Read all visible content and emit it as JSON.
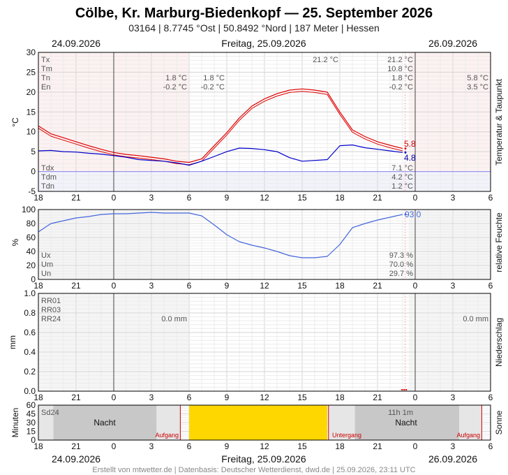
{
  "header": {
    "title": "Cölbe, Kr. Marburg-Biedenkopf  —  25. September 2026",
    "subtitle": "03164  |  8.7745 °Ost  |  50.8492 °Nord  |  187 Meter  |  Hessen",
    "date_left": "24.09.2026",
    "date_center": "Freitag, 25.09.2026",
    "date_right": "26.09.2026"
  },
  "footer": "Erstellt von mtwetter.de | Datenbasis: Deutscher Wetterdienst, dwd.de | 25.09.2026, 23:11 UTC",
  "x_ticks": [
    "18",
    "21",
    "0",
    "3",
    "6",
    "9",
    "12",
    "15",
    "18",
    "21",
    "0",
    "3",
    "6"
  ],
  "colors": {
    "temp": "#e00000",
    "dew": "#0000cc",
    "hum": "#4466dd",
    "sun": "#ffd700",
    "night": "#c8c8c8",
    "marker": "#cc0000"
  },
  "chart_data": [
    {
      "type": "line",
      "ylabel": "°C",
      "side_label": "Temperatur & Taupunkt",
      "ylim": [
        -5,
        30
      ],
      "y_ticks": [
        "30",
        "25",
        "20",
        "15",
        "10",
        "5",
        "0",
        "-5"
      ],
      "x_unit": "hours since 24.09.2026 18:00",
      "series": [
        {
          "name": "Temperatur",
          "x": [
            0,
            1,
            2,
            3,
            4,
            5,
            6,
            7,
            8,
            9,
            10,
            11,
            12,
            13,
            14,
            15,
            16,
            17,
            18,
            19,
            20,
            21,
            22,
            23,
            24,
            25,
            26,
            27,
            28,
            29
          ],
          "values": [
            11.5,
            9.5,
            8.5,
            7.5,
            6.5,
            5.6,
            4.8,
            4.3,
            4.0,
            3.6,
            3.2,
            2.6,
            2.3,
            3.2,
            6.5,
            9.8,
            13.5,
            16.5,
            18.3,
            19.6,
            20.5,
            20.8,
            20.5,
            20.0,
            15.0,
            10.5,
            8.8,
            7.5,
            6.6,
            5.8
          ]
        },
        {
          "name": "Taupunkt",
          "x": [
            0,
            1,
            2,
            3,
            4,
            5,
            6,
            7,
            8,
            9,
            10,
            11,
            12,
            13,
            14,
            15,
            16,
            17,
            18,
            19,
            20,
            21,
            22,
            23,
            24,
            25,
            26,
            27,
            28,
            29
          ],
          "values": [
            5.2,
            5.3,
            5.0,
            4.9,
            4.6,
            4.4,
            4.0,
            3.6,
            3.0,
            2.8,
            2.6,
            2.2,
            1.6,
            2.6,
            3.8,
            5.0,
            5.9,
            5.8,
            5.5,
            5.0,
            3.5,
            2.6,
            2.8,
            3.0,
            6.5,
            6.7,
            6.0,
            5.6,
            5.2,
            4.8
          ]
        }
      ],
      "stats_left": {
        "labels": [
          "Tx",
          "Tm",
          "Tn",
          "En"
        ],
        "values": [
          "",
          "",
          "",
          ""
        ]
      },
      "stats_day1": {
        "tn": "1.8 °C",
        "en": "-0.2 °C"
      },
      "stats_night": {
        "tn": "1.8 °C",
        "en": "-0.2 °C"
      },
      "stats_mid": {
        "tx": "21.2 °C"
      },
      "stats_right": {
        "tx": "21.2 °C",
        "tm": "10.8 °C",
        "tn": "1.8 °C",
        "en": "-0.2 °C"
      },
      "stats_next": {
        "tn": "5.8 °C",
        "en": "3.5 °C"
      },
      "dew_stats": {
        "labels": [
          "Tdx",
          "Tdm",
          "Tdn"
        ],
        "values": [
          "7.1 °C",
          "4.2 °C",
          "1.2 °C"
        ]
      },
      "last_temp": "5.8",
      "last_dew": "4.8"
    },
    {
      "type": "line",
      "ylabel": "%",
      "side_label": "relative Feuchte",
      "ylim": [
        0,
        100
      ],
      "y_ticks": [
        "100",
        "80",
        "60",
        "40",
        "20",
        "0"
      ],
      "series": [
        {
          "name": "relative Feuchte",
          "x": [
            0,
            1,
            2,
            3,
            4,
            5,
            6,
            7,
            8,
            9,
            10,
            11,
            12,
            13,
            14,
            15,
            16,
            17,
            18,
            19,
            20,
            21,
            22,
            23,
            24,
            25,
            26,
            27,
            28,
            29
          ],
          "values": [
            68,
            80,
            84,
            88,
            90,
            93,
            94,
            94,
            95,
            96,
            95,
            95,
            95,
            91,
            78,
            64,
            54,
            49,
            45,
            40,
            34,
            31,
            31,
            33,
            50,
            74,
            80,
            85,
            89,
            93
          ]
        }
      ],
      "stats": {
        "labels": [
          "Ux",
          "Um",
          "Un"
        ],
        "values": [
          "97.3 %",
          "70.0 %",
          "29.7 %"
        ]
      },
      "last_value": "93.0"
    },
    {
      "type": "bar",
      "ylabel": "mm",
      "side_label": "Niederschlag",
      "ylim": [
        0,
        1.0
      ],
      "y_ticks": [
        "1.0",
        "0.8",
        "0.6",
        "0.4",
        "0.2",
        "0.0"
      ],
      "labels": [
        "RR01",
        "RR03",
        "RR24"
      ],
      "rr24_day": "0.0 mm",
      "rr24_next": "0.0 mm"
    },
    {
      "type": "bar",
      "ylabel": "Minuten",
      "side_label": "Sonne",
      "ylim": [
        0,
        60
      ],
      "y_ticks": [
        "60",
        "45",
        "30",
        "15",
        "0"
      ],
      "label": "Sd24",
      "night_label": "Nacht",
      "night_label_2": "Nacht",
      "sunshine_total": "11h 1m",
      "sunrise": "Aufgang",
      "sunset": "Untergang",
      "sunrise_2": "Aufgang",
      "sunrise_hour": 11.3,
      "sunset_hour": 23.1,
      "sun_start_hour": 12.0,
      "sun_end_hour": 23.0,
      "sunrise_next_hour": 35.3,
      "now_hour": 29.2
    }
  ]
}
